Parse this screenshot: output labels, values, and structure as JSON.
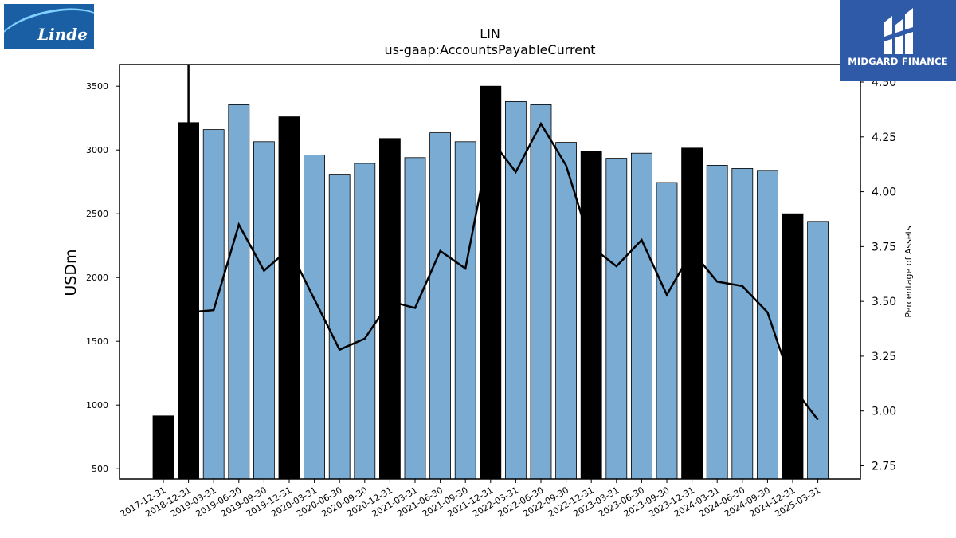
{
  "logos": {
    "left_text": "Linde",
    "right_text": "MIDGARD FINANCE"
  },
  "colors": {
    "bar_default": "#7aabd3",
    "bar_year_end": "#000000",
    "line": "#000000",
    "logo_left_bg": "#1a5fa3",
    "logo_right_bg": "#2f5aa8"
  },
  "chart_data": {
    "type": "bar",
    "title": "LIN",
    "subtitle": "us-gaap:AccountsPayableCurrent",
    "ylabel": "USDm",
    "y2label": "Percentage of Assets",
    "ylim": [
      420,
      3670
    ],
    "y2lim": [
      2.69,
      4.58
    ],
    "yticks": [
      500,
      1000,
      1500,
      2000,
      2500,
      3000,
      3500
    ],
    "y2ticks": [
      "2.75",
      "3.00",
      "3.25",
      "3.50",
      "3.75",
      "4.00",
      "4.25",
      "4.50"
    ],
    "categories": [
      "2017-12-31",
      "2018-12-31",
      "2019-03-31",
      "2019-06-30",
      "2019-09-30",
      "2019-12-31",
      "2020-03-31",
      "2020-06-30",
      "2020-09-30",
      "2020-12-31",
      "2021-03-31",
      "2021-06-30",
      "2021-09-30",
      "2021-12-31",
      "2022-03-31",
      "2022-06-30",
      "2022-09-30",
      "2022-12-31",
      "2023-03-31",
      "2023-06-30",
      "2023-09-30",
      "2023-12-31",
      "2024-03-31",
      "2024-06-30",
      "2024-09-30",
      "2024-12-31",
      "2025-03-31"
    ],
    "series": [
      {
        "values": [
          915,
          3215,
          3160,
          3355,
          3065,
          3260,
          2960,
          2810,
          2895,
          3090,
          2940,
          3135,
          3065,
          3500,
          3380,
          3355,
          3060,
          2990,
          2935,
          2975,
          2745,
          3015,
          2880,
          2855,
          2840,
          2500,
          2440
        ]
      },
      {
        "values": [
          null,
          3.45,
          3.46,
          3.85,
          3.64,
          3.74,
          3.51,
          3.28,
          3.33,
          3.5,
          3.47,
          3.73,
          3.65,
          4.24,
          4.09,
          4.31,
          4.12,
          3.75,
          3.66,
          3.78,
          3.53,
          3.73,
          3.59,
          3.57,
          3.45,
          3.11,
          2.96
        ]
      }
    ]
  }
}
